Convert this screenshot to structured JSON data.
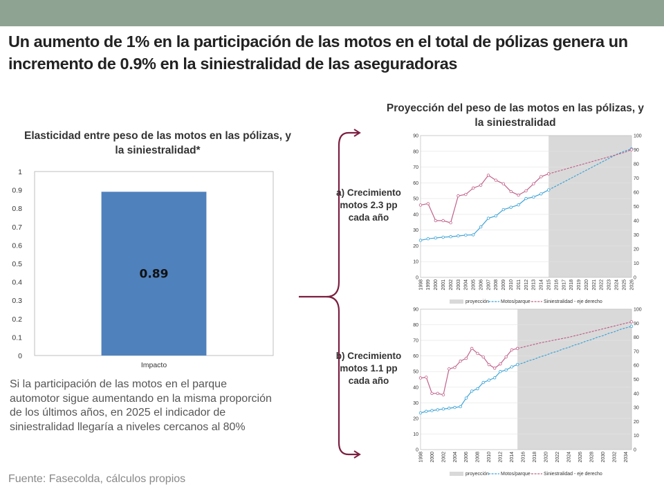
{
  "colors": {
    "topbar": "#8fa392",
    "bar": "#4f81bd",
    "motos": "#3ba3d6",
    "siniestralidad": "#c06088",
    "proyeccion": "#d9d9d9"
  },
  "title": "Un aumento de 1% en la participación de las motos en el total de pólizas genera un incremento de 0.9% en la siniestralidad de las aseguradoras",
  "left_chart": {
    "title": "Elasticidad entre peso de las motos en las pólizas, y la siniestralidad*",
    "chart_data": {
      "type": "bar",
      "categories": [
        "Impacto"
      ],
      "values": [
        0.89
      ],
      "data_labels": [
        "0.89"
      ],
      "ylim": [
        0,
        1
      ],
      "yticks": [
        "0",
        "0.1",
        "0.2",
        "0.3",
        "0.4",
        "0.5",
        "0.6",
        "0.7",
        "0.8",
        "0.9",
        "1"
      ]
    }
  },
  "right_title": "Proyección del peso de las motos en las pólizas, y la siniestralidad",
  "scenario_a": "a) Crecimiento motos 2.3 pp cada año",
  "scenario_b": "b) Crecimiento motos 1.1 pp cada año",
  "legend": {
    "proyeccion": "proyección",
    "motos": "Motos/parque",
    "siniestralidad": "Siniestralidad - eje derecho"
  },
  "chart_data": [
    {
      "type": "line",
      "id": "a",
      "x": [
        "1998",
        "1999",
        "2000",
        "2001",
        "2002",
        "2003",
        "2004",
        "2005",
        "2006",
        "2007",
        "2008",
        "2009",
        "2010",
        "2011",
        "2012",
        "2013",
        "2014",
        "2015",
        "2016",
        "2017",
        "2018",
        "2019",
        "2020",
        "2021",
        "2022",
        "2023",
        "2024",
        "2025",
        "2026"
      ],
      "ylim": [
        0,
        90
      ],
      "y2lim": [
        0,
        100
      ],
      "yticks": [
        "0",
        "10",
        "20",
        "30",
        "40",
        "50",
        "60",
        "70",
        "80",
        "90"
      ],
      "y2ticks": [
        "0",
        "10",
        "20",
        "30",
        "40",
        "50",
        "60",
        "70",
        "80",
        "90",
        "100"
      ],
      "projection_start": "2015",
      "series": [
        {
          "name": "Motos/parque",
          "axis": "left",
          "values": [
            23.5,
            24.5,
            25,
            25.5,
            25.8,
            26.3,
            26.8,
            27,
            32,
            37.5,
            39,
            43,
            44.5,
            46,
            50,
            51,
            53,
            55.5,
            58,
            60.5,
            63,
            65.5,
            68,
            70.5,
            73,
            75.5,
            78,
            80,
            81.5
          ]
        },
        {
          "name": "Siniestralidad - eje derecho",
          "axis": "right",
          "values": [
            51,
            52,
            40,
            40,
            38.5,
            57.5,
            58.5,
            63,
            65,
            72,
            68.5,
            66,
            60.5,
            58,
            61,
            66,
            71,
            73,
            74.5,
            76,
            77.5,
            79,
            80.5,
            82,
            83.5,
            85,
            86.5,
            88,
            90
          ]
        }
      ]
    },
    {
      "type": "line",
      "id": "b",
      "x": [
        "1998",
        "1999",
        "2000",
        "2001",
        "2002",
        "2003",
        "2004",
        "2005",
        "2006",
        "2007",
        "2008",
        "2009",
        "2010",
        "2011",
        "2012",
        "2013",
        "2014",
        "2015",
        "2016",
        "2017",
        "2018",
        "2019",
        "2020",
        "2021",
        "2022",
        "2023",
        "2024",
        "2025",
        "2026",
        "2027",
        "2028",
        "2029",
        "2030",
        "2031",
        "2032",
        "2033",
        "2034",
        "2035"
      ],
      "xticks": [
        "1998",
        "2000",
        "2002",
        "2004",
        "2006",
        "2008",
        "2010",
        "2012",
        "2014",
        "2016",
        "2018",
        "2020",
        "2022",
        "2024",
        "2026",
        "2028",
        "2030",
        "2032",
        "2034"
      ],
      "ylim": [
        0,
        90
      ],
      "y2lim": [
        0,
        100
      ],
      "yticks": [
        "0",
        "10",
        "20",
        "30",
        "40",
        "50",
        "60",
        "70",
        "80",
        "90"
      ],
      "y2ticks": [
        "0",
        "10",
        "20",
        "30",
        "40",
        "50",
        "60",
        "70",
        "80",
        "90",
        "100"
      ],
      "projection_start": "2015",
      "series": [
        {
          "name": "Motos/parque",
          "axis": "left",
          "values": [
            23.5,
            24.5,
            25,
            25.5,
            26,
            26.5,
            27,
            27.5,
            33,
            37.5,
            39,
            43,
            44.5,
            46,
            50,
            51,
            53,
            54.5,
            55.5,
            57,
            58,
            59.5,
            60.5,
            62,
            63,
            64.5,
            65.5,
            67,
            68,
            69.5,
            70.5,
            72,
            73,
            74.5,
            75.5,
            77,
            78,
            79
          ]
        },
        {
          "name": "Siniestralidad - eje derecho",
          "axis": "right",
          "values": [
            51,
            51.5,
            40,
            40,
            39,
            57.5,
            58.5,
            63,
            65,
            72,
            68.5,
            66,
            60.5,
            58,
            61,
            66,
            71,
            72,
            73,
            74,
            75,
            76,
            76.8,
            77.6,
            78.4,
            79.2,
            80,
            81,
            82,
            83,
            84,
            85,
            86,
            87,
            88,
            89,
            90,
            91
          ]
        }
      ]
    }
  ],
  "paragraph": "Si la participación de las motos en el parque automotor sigue aumentando en la misma proporción de los últimos años, en 2025 el indicador de siniestralidad llegaría a niveles cercanos al 80%",
  "source": "Fuente: Fasecolda, cálculos propios"
}
